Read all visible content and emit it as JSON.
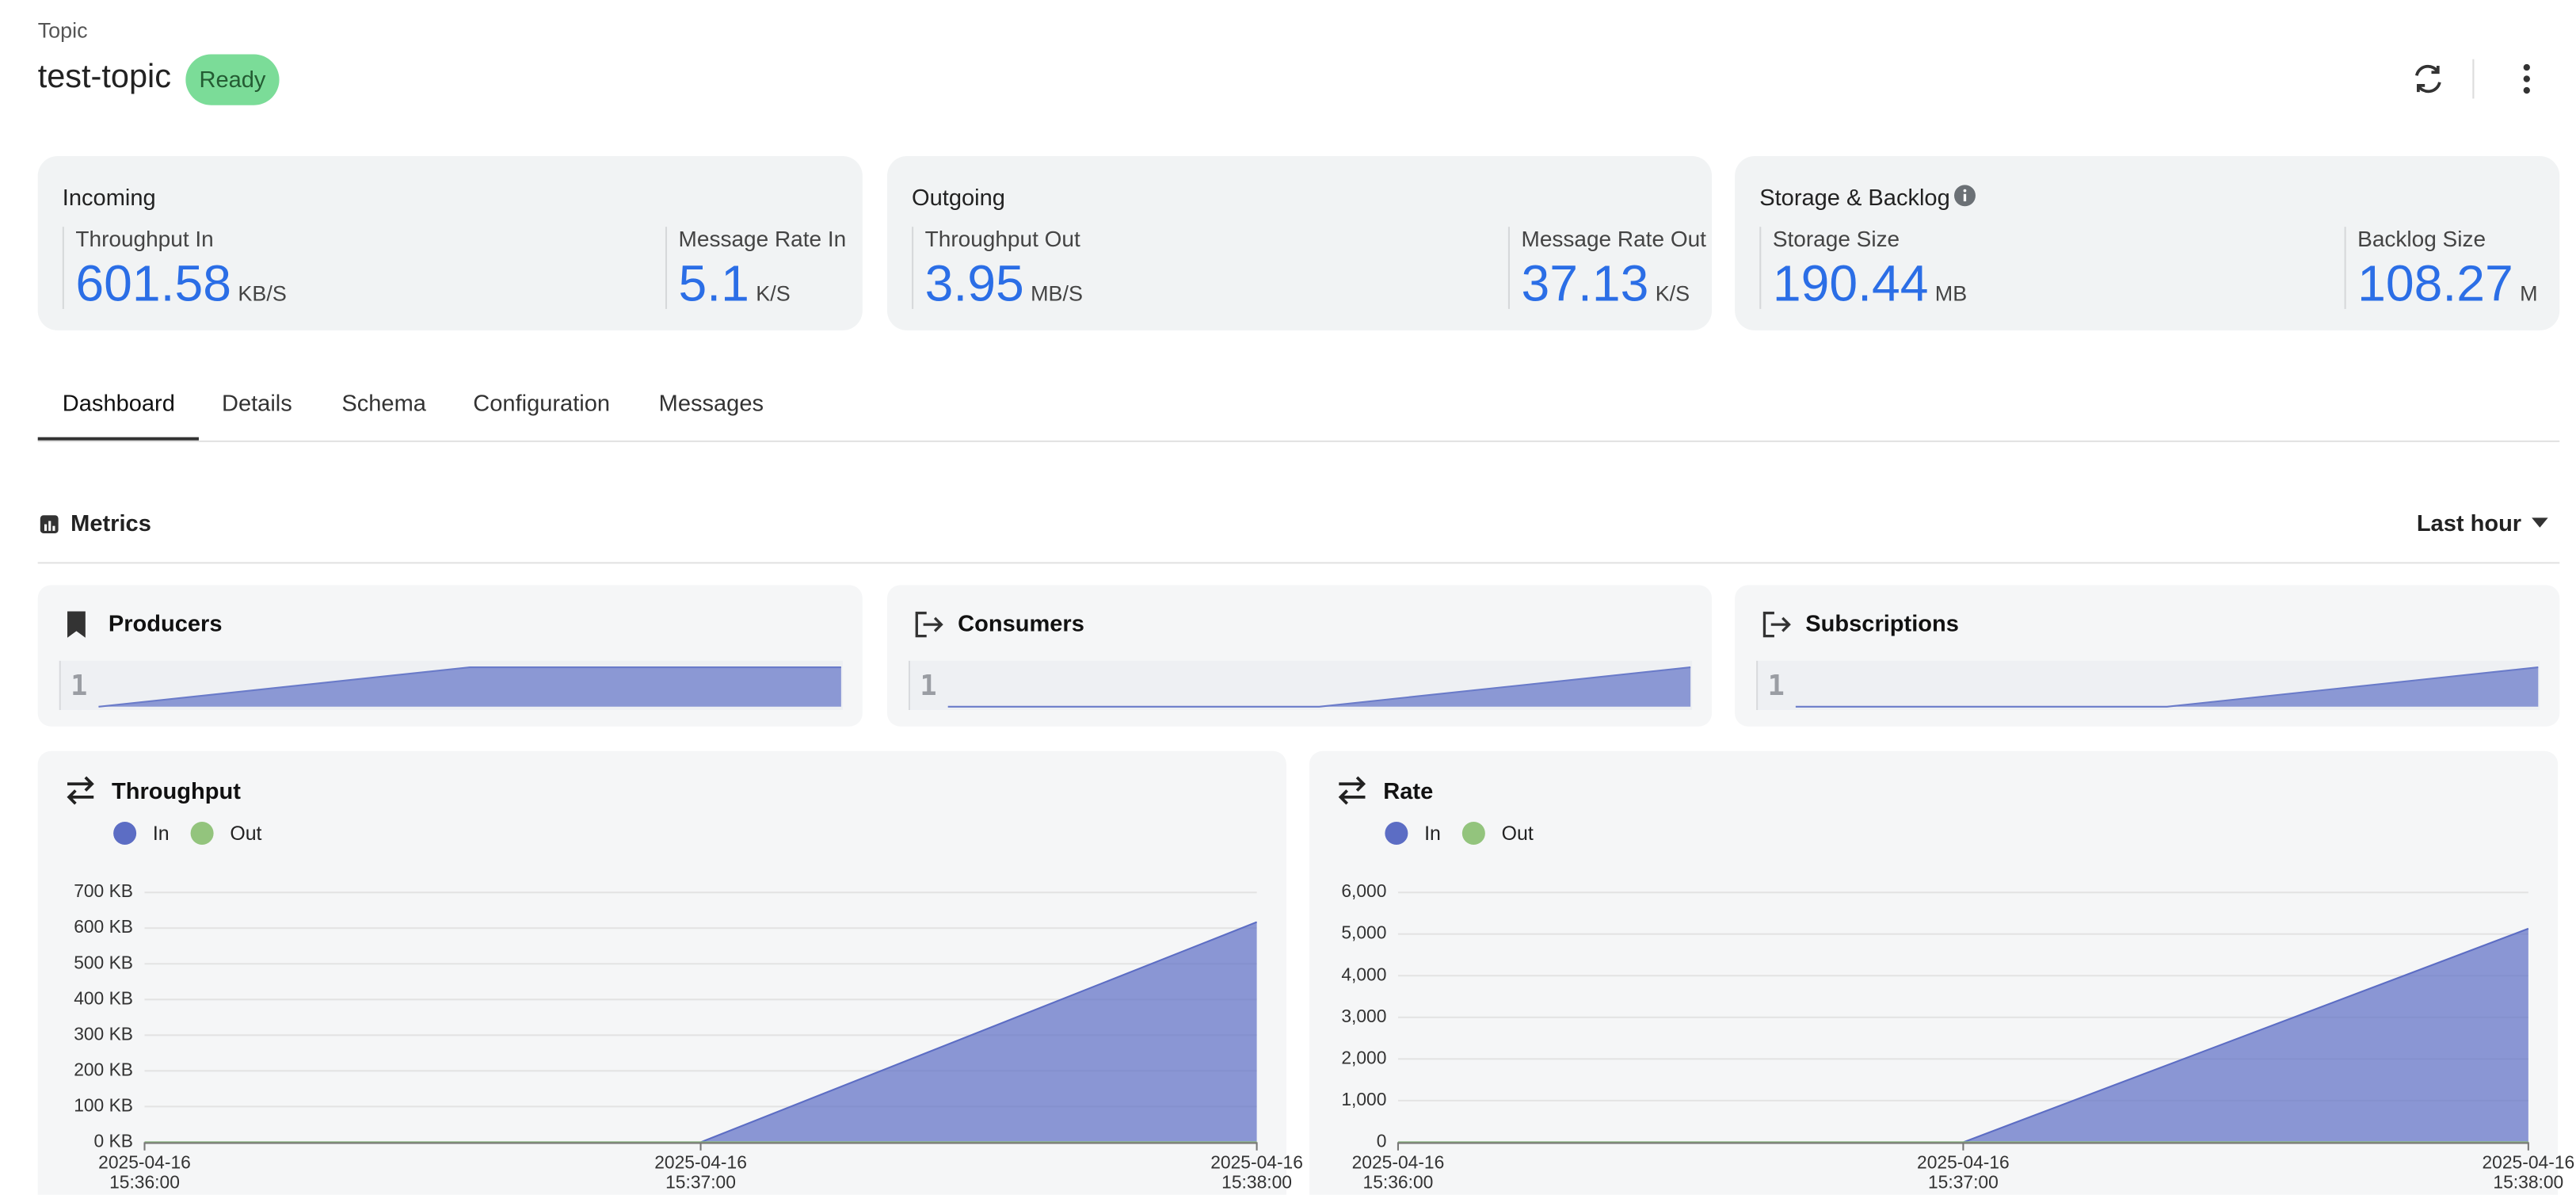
{
  "header": {
    "breadcrumb": "Topic",
    "title": "test-topic",
    "status": "Ready"
  },
  "stats": [
    {
      "title": "Incoming",
      "metrics": [
        {
          "label": "Throughput In",
          "value": "601.58",
          "unit": "KB/S"
        },
        {
          "label": "Message Rate In",
          "value": "5.1",
          "unit": "K/S"
        }
      ]
    },
    {
      "title": "Outgoing",
      "metrics": [
        {
          "label": "Throughput Out",
          "value": "3.95",
          "unit": "MB/S"
        },
        {
          "label": "Message Rate Out",
          "value": "37.13",
          "unit": "K/S"
        }
      ]
    },
    {
      "title": "Storage & Backlog",
      "metrics": [
        {
          "label": "Storage Size",
          "value": "190.44",
          "unit": "MB"
        },
        {
          "label": "Backlog Size",
          "value": "108.27",
          "unit": "M"
        }
      ]
    }
  ],
  "tabs": [
    "Dashboard",
    "Details",
    "Schema",
    "Configuration",
    "Messages"
  ],
  "metrics": {
    "title": "Metrics",
    "range": "Last hour"
  },
  "chart_data": [
    {
      "type": "area",
      "title": "Producers",
      "categories": [
        null,
        null,
        null
      ],
      "values": [
        0,
        1,
        1
      ],
      "color": "#6a7bc9",
      "ylim": [
        0,
        1
      ],
      "yticks": [
        1
      ]
    },
    {
      "type": "area",
      "title": "Consumers",
      "categories": [
        null,
        null,
        null
      ],
      "values": [
        0,
        0,
        1
      ],
      "color": "#6a7bc9",
      "ylim": [
        0,
        1
      ],
      "yticks": [
        1
      ]
    },
    {
      "type": "area",
      "title": "Subscriptions",
      "categories": [
        null,
        null,
        null
      ],
      "values": [
        0,
        0,
        1
      ],
      "color": "#6a7bc9",
      "ylim": [
        0,
        1
      ],
      "yticks": [
        1
      ]
    },
    {
      "type": "area",
      "title": "Throughput",
      "x": [
        "2025-04-16 15:36:00",
        "2025-04-16 15:37:00",
        "2025-04-16 15:38:00"
      ],
      "series": [
        {
          "name": "In",
          "color": "#5c6dc4",
          "values": [
            0,
            0,
            617
          ]
        },
        {
          "name": "Out",
          "color": "#93c47d",
          "values": [
            0,
            0,
            0
          ]
        }
      ],
      "ylim": [
        0,
        700
      ],
      "grid": true,
      "legend": "top-left",
      "yticks": [
        {
          "value": 0,
          "label": "0 KB"
        },
        {
          "value": 100,
          "label": "100 KB"
        },
        {
          "value": 200,
          "label": "200 KB"
        },
        {
          "value": 300,
          "label": "300 KB"
        },
        {
          "value": 400,
          "label": "400 KB"
        },
        {
          "value": 500,
          "label": "500 KB"
        },
        {
          "value": 600,
          "label": "600 KB"
        },
        {
          "value": 700,
          "label": "700 KB"
        }
      ]
    },
    {
      "type": "area",
      "title": "Rate",
      "x": [
        "2025-04-16 15:36:00",
        "2025-04-16 15:37:00",
        "2025-04-16 15:38:00"
      ],
      "series": [
        {
          "name": "In",
          "color": "#5c6dc4",
          "values": [
            0,
            0,
            5130
          ]
        },
        {
          "name": "Out",
          "color": "#93c47d",
          "values": [
            0,
            0,
            0
          ]
        }
      ],
      "ylim": [
        0,
        6000
      ],
      "grid": true,
      "legend": "top-left",
      "yticks": [
        0,
        {
          "value": 1000,
          "label": "1,000"
        },
        {
          "value": 2000,
          "label": "2,000"
        },
        {
          "value": 3000,
          "label": "3,000"
        },
        {
          "value": 4000,
          "label": "4,000"
        },
        {
          "value": 5000,
          "label": "5,000"
        },
        {
          "value": 6000,
          "label": "6,000"
        }
      ]
    }
  ]
}
